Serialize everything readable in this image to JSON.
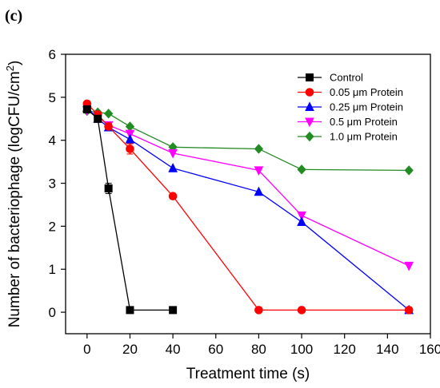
{
  "panel_label": "(c)",
  "chart_data": {
    "type": "line",
    "title": "",
    "xlabel": "Treatment time (s)",
    "ylabel_main": "Number of bacteriophage (logCFU/cm",
    "ylabel_sup": "2",
    "ylabel_end": ")",
    "xlim": [
      -10,
      160
    ],
    "ylim": [
      -0.5,
      6
    ],
    "xticks": [
      0,
      20,
      40,
      60,
      80,
      100,
      120,
      140,
      160
    ],
    "yticks": [
      0,
      1,
      2,
      3,
      4,
      5,
      6
    ],
    "legend_position": "top-right",
    "series": [
      {
        "name": "Control",
        "color": "#000000",
        "marker": "square",
        "x": [
          0,
          5,
          10,
          20,
          40
        ],
        "y": [
          4.72,
          4.5,
          2.88,
          0.05,
          0.05
        ],
        "err": [
          0.05,
          0.08,
          0.12,
          0,
          0
        ]
      },
      {
        "name": "0.05 μm Protein",
        "color": "#ff0000",
        "marker": "circle",
        "x": [
          0,
          5,
          10,
          20,
          40,
          80,
          100,
          150
        ],
        "y": [
          4.85,
          4.6,
          4.32,
          3.8,
          2.7,
          0.05,
          0.05,
          0.05
        ],
        "err": [
          0,
          0,
          0,
          0.12,
          0,
          0,
          0,
          0
        ]
      },
      {
        "name": "0.25 μm Protein",
        "color": "#0000ff",
        "marker": "triangle-up",
        "x": [
          0,
          5,
          10,
          20,
          40,
          80,
          100,
          150
        ],
        "y": [
          4.75,
          4.5,
          4.3,
          4.02,
          3.35,
          2.8,
          2.1,
          0.05
        ],
        "err": [
          0,
          0,
          0,
          0,
          0,
          0,
          0,
          0
        ]
      },
      {
        "name": "0.5 μm Protein",
        "color": "#ff00ff",
        "marker": "triangle-down",
        "x": [
          0,
          5,
          10,
          20,
          40,
          80,
          100,
          150
        ],
        "y": [
          4.7,
          4.55,
          4.35,
          4.15,
          3.7,
          3.3,
          2.25,
          1.08
        ],
        "err": [
          0,
          0,
          0,
          0,
          0,
          0,
          0,
          0
        ]
      },
      {
        "name": "1.0 μm Protein",
        "color": "#228b22",
        "marker": "diamond",
        "x": [
          0,
          5,
          10,
          20,
          40,
          80,
          100,
          150
        ],
        "y": [
          4.68,
          4.65,
          4.62,
          4.32,
          3.84,
          3.8,
          3.32,
          3.3
        ],
        "err": [
          0,
          0,
          0,
          0,
          0,
          0,
          0,
          0
        ]
      }
    ]
  }
}
